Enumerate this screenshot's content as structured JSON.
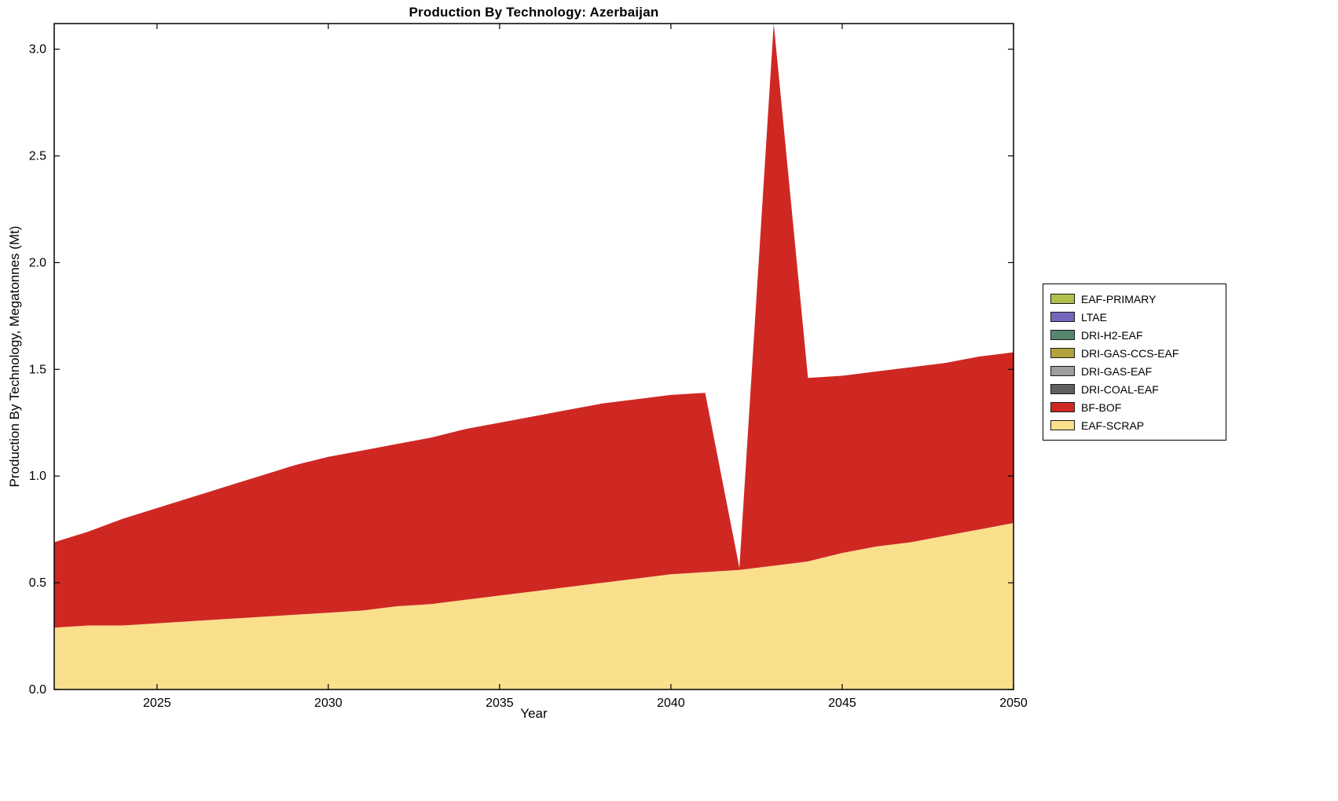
{
  "chart_data": {
    "type": "area",
    "stacked": true,
    "title": "Production By Technology: Azerbaijan",
    "xlabel": "Year",
    "ylabel": "Production By Technology, Megatonnes (Mt)",
    "grid": false,
    "legend_position": "right-outside",
    "background": "#ffffff",
    "axis_color": "#000000",
    "xlim": [
      2022,
      2050
    ],
    "ylim": [
      0,
      3.12
    ],
    "x_tick_values": [
      2025,
      2030,
      2035,
      2040,
      2045,
      2050
    ],
    "x_ticks": [
      "2025",
      "2030",
      "2035",
      "2040",
      "2045",
      "2050"
    ],
    "y_tick_values": [
      0,
      0.5,
      1.0,
      1.5,
      2.0,
      2.5,
      3.0
    ],
    "y_ticks": [
      "0.0",
      "0.5",
      "1.0",
      "1.5",
      "2.0",
      "2.5",
      "3.0"
    ],
    "x": [
      2022,
      2023,
      2024,
      2025,
      2026,
      2027,
      2028,
      2029,
      2030,
      2031,
      2032,
      2033,
      2034,
      2035,
      2036,
      2037,
      2038,
      2039,
      2040,
      2041,
      2042,
      2043,
      2044,
      2045,
      2046,
      2047,
      2048,
      2049,
      2050
    ],
    "stack_order_bottom_to_top": [
      "EAF-SCRAP",
      "BF-BOF",
      "DRI-COAL-EAF",
      "DRI-GAS-EAF",
      "DRI-GAS-CCS-EAF",
      "DRI-H2-EAF",
      "LTAE",
      "EAF-PRIMARY"
    ],
    "series": [
      {
        "name": "EAF-PRIMARY",
        "color": "#b3bf4d",
        "values": [
          0,
          0,
          0,
          0,
          0,
          0,
          0,
          0,
          0,
          0,
          0,
          0,
          0,
          0,
          0,
          0,
          0,
          0,
          0,
          0,
          0,
          0,
          0,
          0,
          0,
          0,
          0,
          0,
          0
        ]
      },
      {
        "name": "LTAE",
        "color": "#7466bd",
        "values": [
          0,
          0,
          0,
          0,
          0,
          0,
          0,
          0,
          0,
          0,
          0,
          0,
          0,
          0,
          0,
          0,
          0,
          0,
          0,
          0,
          0,
          0,
          0,
          0,
          0,
          0,
          0,
          0,
          0
        ]
      },
      {
        "name": "DRI-H2-EAF",
        "color": "#55876f",
        "values": [
          0,
          0,
          0,
          0,
          0,
          0,
          0,
          0,
          0,
          0,
          0,
          0,
          0,
          0,
          0,
          0,
          0,
          0,
          0,
          0,
          0,
          0,
          0,
          0,
          0,
          0,
          0,
          0,
          0
        ]
      },
      {
        "name": "DRI-GAS-CCS-EAF",
        "color": "#b3a23c",
        "values": [
          0,
          0,
          0,
          0,
          0,
          0,
          0,
          0,
          0,
          0,
          0,
          0,
          0,
          0,
          0,
          0,
          0,
          0,
          0,
          0,
          0,
          0,
          0,
          0,
          0,
          0,
          0,
          0,
          0
        ]
      },
      {
        "name": "DRI-GAS-EAF",
        "color": "#9e9e9e",
        "values": [
          0,
          0,
          0,
          0,
          0,
          0,
          0,
          0,
          0,
          0,
          0,
          0,
          0,
          0,
          0,
          0,
          0,
          0,
          0,
          0,
          0,
          0,
          0,
          0,
          0,
          0,
          0,
          0,
          0
        ]
      },
      {
        "name": "DRI-COAL-EAF",
        "color": "#5f5f5f",
        "values": [
          0,
          0,
          0,
          0,
          0,
          0,
          0,
          0,
          0,
          0,
          0,
          0,
          0,
          0,
          0,
          0,
          0,
          0,
          0,
          0,
          0,
          0,
          0,
          0,
          0,
          0,
          0,
          0,
          0
        ]
      },
      {
        "name": "BF-BOF",
        "color": "#cf2823",
        "values": [
          0.4,
          0.44,
          0.5,
          0.54,
          0.58,
          0.62,
          0.66,
          0.7,
          0.73,
          0.75,
          0.76,
          0.78,
          0.8,
          0.81,
          0.82,
          0.83,
          0.84,
          0.84,
          0.84,
          0.84,
          0.01,
          2.54,
          0.86,
          0.83,
          0.82,
          0.82,
          0.81,
          0.81,
          0.8
        ]
      },
      {
        "name": "EAF-SCRAP",
        "color": "#fadf8d",
        "values": [
          0.29,
          0.3,
          0.3,
          0.31,
          0.32,
          0.33,
          0.34,
          0.35,
          0.36,
          0.37,
          0.39,
          0.4,
          0.42,
          0.44,
          0.46,
          0.48,
          0.5,
          0.52,
          0.54,
          0.55,
          0.56,
          0.58,
          0.6,
          0.64,
          0.67,
          0.69,
          0.72,
          0.75,
          0.78
        ]
      }
    ]
  }
}
